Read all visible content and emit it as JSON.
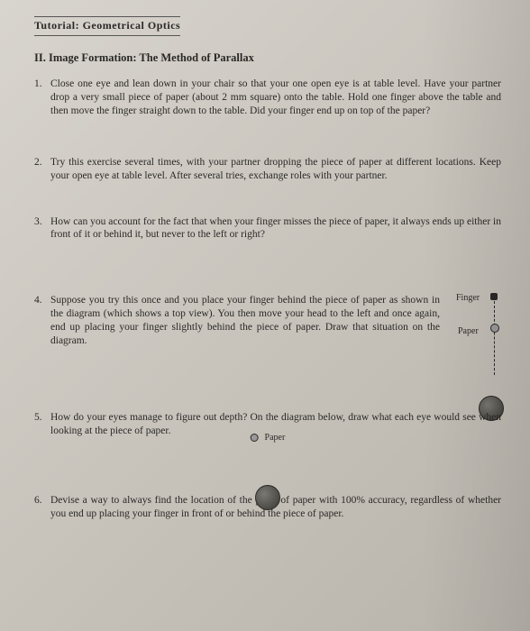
{
  "header_fragment": "Tutorial: Geometrical Optics",
  "section_title": "II. Image Formation: The Method of Parallax",
  "questions": [
    {
      "num": "1.",
      "text": "Close one eye and lean down in your chair so that your one open eye is at table level. Have your partner drop a very small piece of paper (about 2 mm square) onto the table. Hold one finger above the table and then move the finger straight down to the table. Did your finger end up on top of the paper?"
    },
    {
      "num": "2.",
      "text": "Try this exercise several times, with your partner dropping the piece of paper at different locations. Keep your open eye at table level. After several tries, exchange roles with your partner."
    },
    {
      "num": "3.",
      "text": "How can you account for the fact that when your finger misses the piece of paper, it always ends up either in front of it or behind it, but never to the left or right?"
    },
    {
      "num": "4.",
      "text": "Suppose you try this once and you place your finger behind the piece of paper as shown in the diagram (which shows a top view). You then move your head to the left and once again, end up placing your finger slightly behind the piece of paper. Draw that situation on the diagram."
    },
    {
      "num": "5.",
      "text": "How do your eyes manage to figure out depth? On the diagram below, draw what each eye would see when looking at the piece of paper."
    },
    {
      "num": "6.",
      "text": "Devise a way to always find the location of the piece of paper with 100% accuracy, regardless of whether you end up placing your finger in front of or behind the piece of paper."
    }
  ],
  "labels": {
    "finger": "Finger",
    "paper": "Paper"
  },
  "colors": {
    "text": "#2a2826",
    "circle_dark": "#3a3832",
    "circle_light": "#7a7872"
  }
}
